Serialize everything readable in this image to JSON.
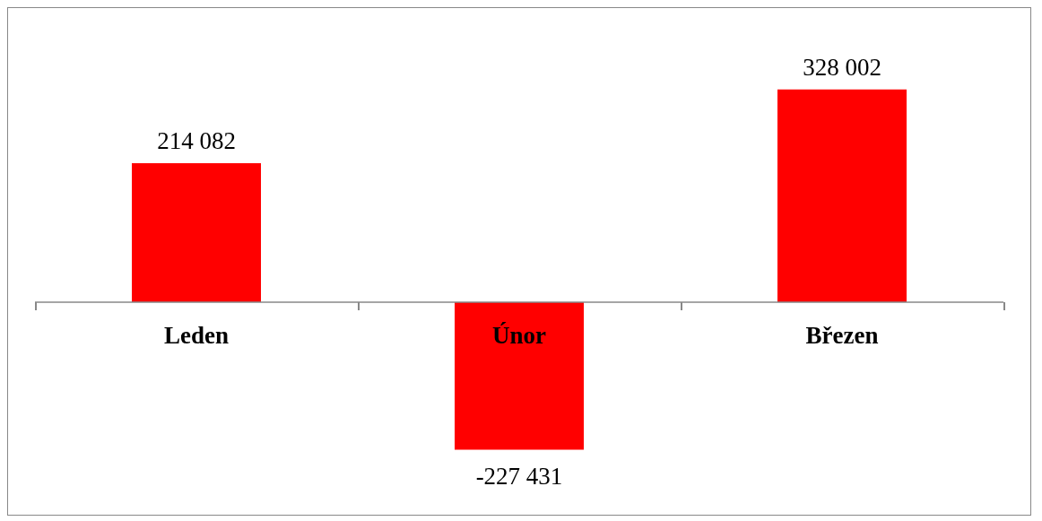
{
  "chart_data": {
    "type": "bar",
    "categories": [
      "Leden",
      "Únor",
      "Březen"
    ],
    "values": [
      214082,
      -227431,
      328002
    ],
    "value_labels": [
      "214 082",
      "-227 431",
      "328 002"
    ],
    "color": "#ff0000"
  }
}
